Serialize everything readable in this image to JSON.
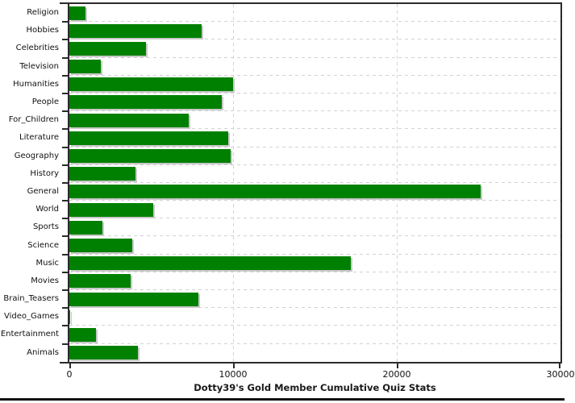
{
  "chart_data": {
    "type": "bar",
    "orientation": "horizontal",
    "title": "Dotty39's Gold Member Cumulative Quiz Stats",
    "categories": [
      "Religion",
      "Hobbies",
      "Celebrities",
      "Television",
      "Humanities",
      "People",
      "For_Children",
      "Literature",
      "Geography",
      "History",
      "General",
      "World",
      "Sports",
      "Science",
      "Music",
      "Movies",
      "Brain_Teasers",
      "Video_Games",
      "Entertainment",
      "Animals"
    ],
    "values": [
      1000,
      8100,
      4700,
      1900,
      10000,
      9300,
      7300,
      9700,
      9850,
      4050,
      25100,
      5100,
      2000,
      3850,
      17200,
      3750,
      7900,
      50,
      1650,
      4200
    ],
    "xlabel": "",
    "ylabel": "",
    "xlim": [
      0,
      30000
    ],
    "x_ticks": [
      0,
      10000,
      20000,
      30000
    ],
    "x_tick_labels": [
      "0",
      "10000",
      "20000",
      "30000"
    ],
    "grid": "dashed",
    "legend": "none",
    "colors": {
      "bar": "#008000",
      "bar_shadow": "#c9c9c9",
      "gridline": "#d2d2d2",
      "axis": "#2b2b2b",
      "title_text": "#1a1a1a",
      "background": "#ffffff"
    }
  }
}
